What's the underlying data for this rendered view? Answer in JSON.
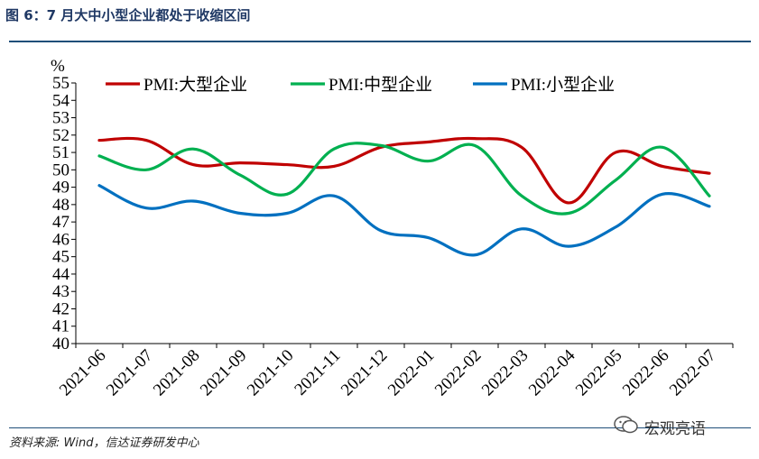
{
  "figure": {
    "title": "图 6：7 月大中小型企业都处于收缩区间",
    "source": "资料来源: Wind，信达证券研发中心",
    "watermark": "宏观亮语",
    "watermark_icon": "wechat-icon"
  },
  "chart_data": {
    "type": "line",
    "title": "",
    "xlabel": "",
    "ylabel": "%",
    "ylim": [
      40,
      55
    ],
    "yticks": [
      40,
      41,
      42,
      43,
      44,
      45,
      46,
      47,
      48,
      49,
      50,
      51,
      52,
      53,
      54,
      55
    ],
    "grid": false,
    "legend_position": "top",
    "categories": [
      "2021-06",
      "2021-07",
      "2021-08",
      "2021-09",
      "2021-10",
      "2021-11",
      "2021-12",
      "2022-01",
      "2022-02",
      "2022-03",
      "2022-04",
      "2022-05",
      "2022-06",
      "2022-07"
    ],
    "series": [
      {
        "name": "PMI:大型企业",
        "color": "#c00000",
        "values": [
          51.7,
          51.7,
          50.3,
          50.4,
          50.3,
          50.2,
          51.3,
          51.6,
          51.8,
          51.3,
          48.1,
          51.0,
          50.2,
          49.8
        ]
      },
      {
        "name": "PMI:中型企业",
        "color": "#00b050",
        "values": [
          50.8,
          50.0,
          51.2,
          49.7,
          48.6,
          51.2,
          51.4,
          50.5,
          51.4,
          48.5,
          47.5,
          49.4,
          51.3,
          48.5
        ]
      },
      {
        "name": "PMI:小型企业",
        "color": "#0070c0",
        "values": [
          49.1,
          47.8,
          48.2,
          47.5,
          47.5,
          48.5,
          46.5,
          46.1,
          45.1,
          46.6,
          45.6,
          46.7,
          48.6,
          47.9
        ]
      }
    ]
  }
}
